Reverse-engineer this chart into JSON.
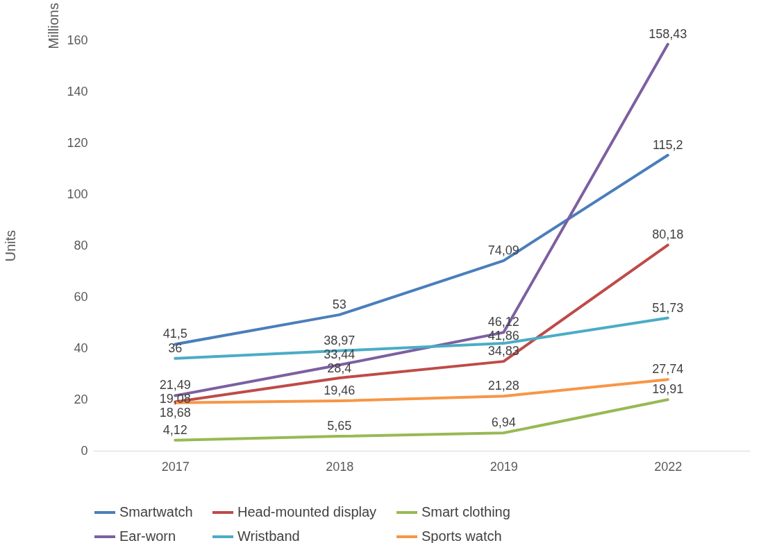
{
  "chart_data": {
    "type": "line",
    "ylabel": "Units",
    "annotations": [
      "Millions"
    ],
    "categories": [
      "2017",
      "2018",
      "2019",
      "2022"
    ],
    "series": [
      {
        "name": "Smartwatch",
        "color": "#4a7ebb",
        "values": [
          41.5,
          53,
          74.09,
          115.2
        ],
        "value_labels": [
          "41,5",
          "53",
          "74,09",
          "115,2"
        ]
      },
      {
        "name": "Head-mounted display",
        "color": "#be4b48",
        "values": [
          19.08,
          28.4,
          34.83,
          80.18
        ],
        "value_labels": [
          "19,08",
          "28,4",
          "34,83",
          "80,18"
        ]
      },
      {
        "name": "Smart clothing",
        "color": "#98b954",
        "values": [
          4.12,
          5.65,
          6.94,
          19.91
        ],
        "value_labels": [
          "4,12",
          "5,65",
          "6,94",
          "19,91"
        ]
      },
      {
        "name": "Ear-worn",
        "color": "#7d5fa0",
        "values": [
          21.49,
          33.44,
          46.12,
          158.43
        ],
        "value_labels": [
          "21,49",
          "33,44",
          "46,12",
          "158,43"
        ]
      },
      {
        "name": "Wristband",
        "color": "#4bacc6",
        "values": [
          36,
          38.97,
          41.86,
          51.73
        ],
        "value_labels": [
          "36",
          "38,97",
          "41,86",
          "51,73"
        ]
      },
      {
        "name": "Sports watch",
        "color": "#f79646",
        "values": [
          18.68,
          19.46,
          21.28,
          27.74
        ],
        "value_labels": [
          "18,68",
          "19,46",
          "21,28",
          "27,74"
        ]
      }
    ],
    "ylim": [
      0,
      160
    ],
    "yticks": [
      0,
      20,
      40,
      60,
      80,
      100,
      120,
      140,
      160
    ],
    "legend": "bottom",
    "marker": "none",
    "line_style": "solid",
    "grid": false
  }
}
